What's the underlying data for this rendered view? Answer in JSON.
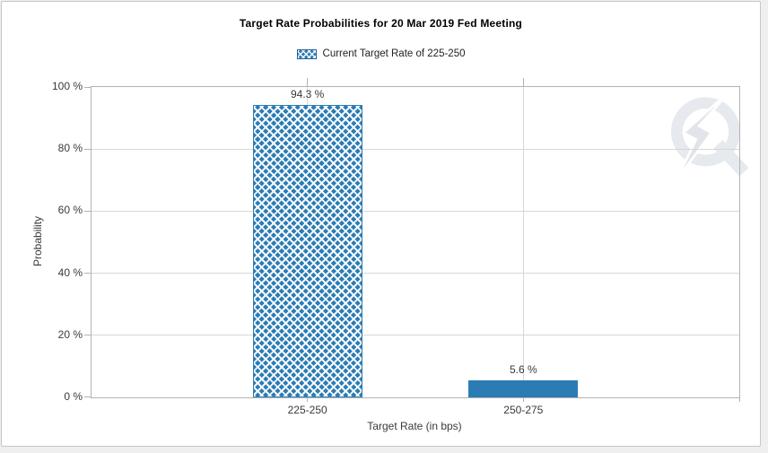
{
  "page": {
    "background_color": "#efefef",
    "card_color": "#ffffff"
  },
  "chart_data": {
    "type": "bar",
    "title": "Target Rate Probabilities for 20 Mar 2019 Fed Meeting",
    "categories": [
      "225-250",
      "250-275"
    ],
    "values": [
      94.3,
      5.6
    ],
    "value_labels": [
      "94.3 %",
      "5.6 %"
    ],
    "xlabel": "Target Rate (in bps)",
    "ylabel": "Probability",
    "ylim": [
      0,
      100
    ],
    "ytick_step": 20,
    "ytick_labels": [
      "0 %",
      "20 %",
      "40 %",
      "60 %",
      "80 %",
      "100 %"
    ],
    "legend": [
      "Current Target Rate of 225-250"
    ],
    "legend_position": "top",
    "grid": true,
    "bar_styles": [
      "crosshatch",
      "solid"
    ],
    "bar_color": "#2b7cb5",
    "gridline_color": "#d7d7d7",
    "axis_color": "#b3b3b3"
  },
  "watermark": {
    "icon": "quikstrike-logo"
  }
}
